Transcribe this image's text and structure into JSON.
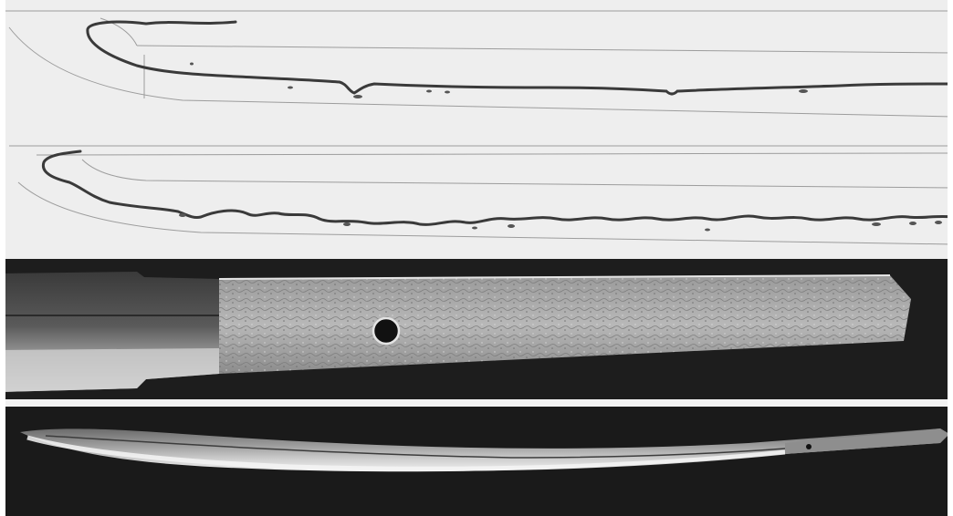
{
  "plate": {
    "panels": [
      {
        "name": "hamon-sketch-upper",
        "subject": "hamon-outline-drawing"
      },
      {
        "name": "hamon-sketch-lower",
        "subject": "hamon-outline-drawing"
      },
      {
        "name": "tang-photograph",
        "subject": "nakago-detail"
      },
      {
        "name": "full-blade-photograph",
        "subject": "katana-overview"
      }
    ]
  },
  "colors": {
    "paper": "#eeeeee",
    "ink": "#3a3a3a",
    "guide_line": "#9a9a9a",
    "photo_background": "#1d1d1d",
    "steel_light": "#cfcfcf",
    "steel_dark": "#6d6d6d",
    "separator": "#f2f2f2"
  }
}
